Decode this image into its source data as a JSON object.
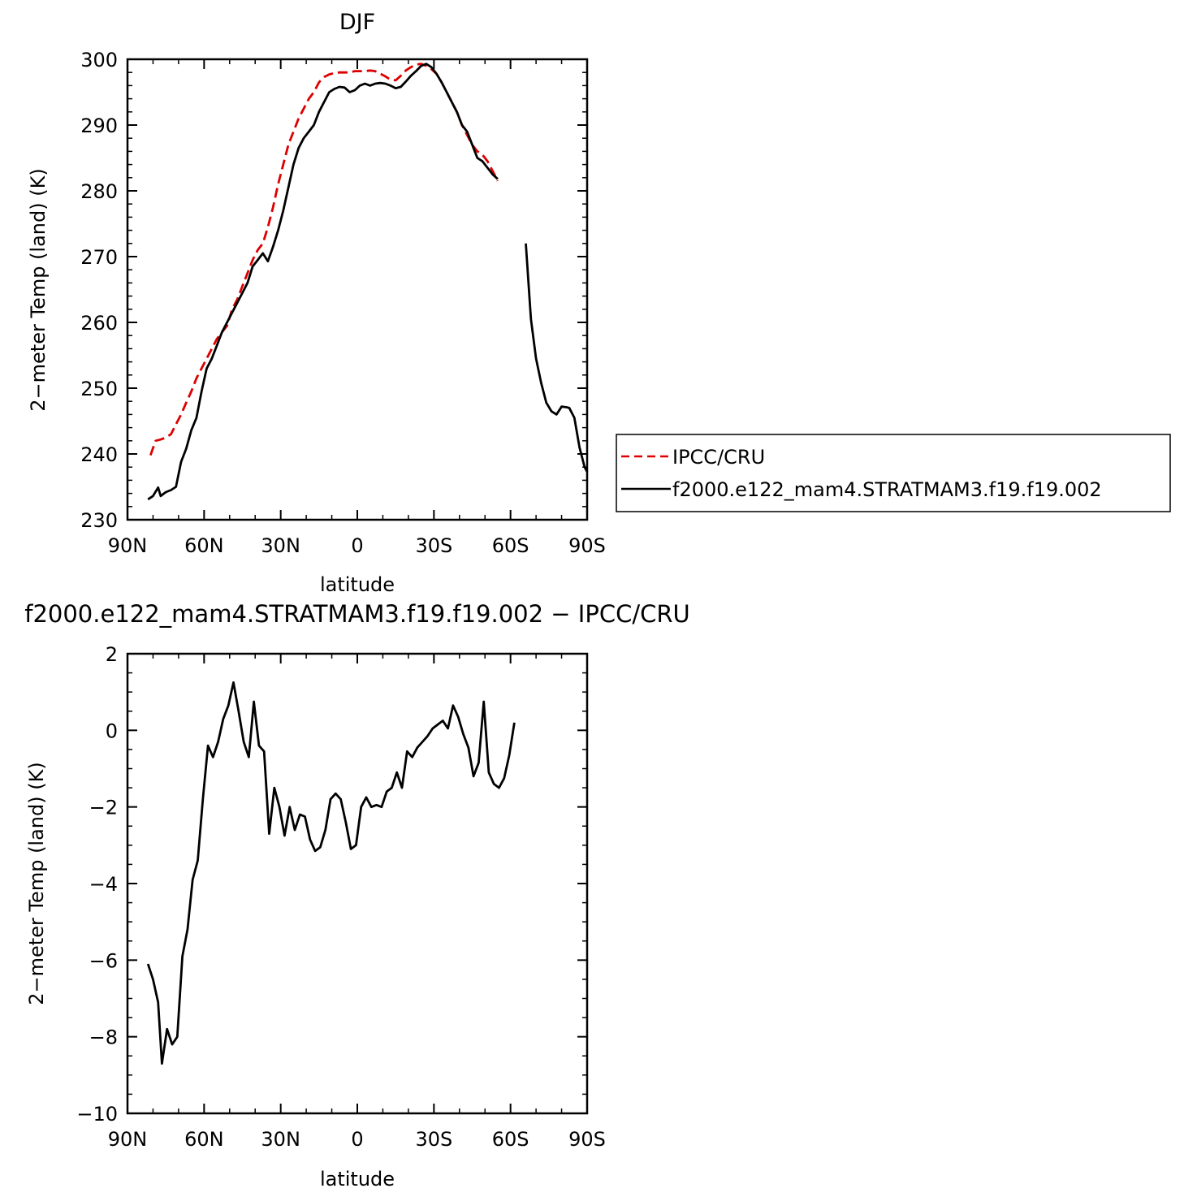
{
  "chart_data": [
    {
      "type": "line",
      "title": "DJF",
      "xlabel": "latitude",
      "ylabel": "2−meter Temp (land) (K)",
      "xlim": [
        90,
        -90
      ],
      "ylim": [
        230,
        300
      ],
      "x_ticks": [
        90,
        60,
        30,
        0,
        -30,
        -60,
        -90
      ],
      "x_tick_labels": [
        "90N",
        "60N",
        "30N",
        "0",
        "30S",
        "60S",
        "90S"
      ],
      "y_ticks": [
        230,
        240,
        250,
        260,
        270,
        280,
        290,
        300
      ],
      "y_tick_labels": [
        "230",
        "240",
        "250",
        "260",
        "270",
        "280",
        "290",
        "300"
      ],
      "legend_placement": "right",
      "series": [
        {
          "name": "IPCC/CRU",
          "color": "#dd0000",
          "dash": true,
          "points": [
            [
              81,
              239.8
            ],
            [
              79,
              242
            ],
            [
              77,
              242.2
            ],
            [
              75,
              242.5
            ],
            [
              73,
              243
            ],
            [
              71,
              244.5
            ],
            [
              69,
              246
            ],
            [
              67,
              247.8
            ],
            [
              65,
              249.5
            ],
            [
              63,
              251.5
            ],
            [
              61,
              253
            ],
            [
              59,
              254.5
            ],
            [
              57,
              256
            ],
            [
              55,
              257.5
            ],
            [
              53,
              258.5
            ],
            [
              51,
              259.5
            ],
            [
              49,
              262
            ],
            [
              47,
              263.5
            ],
            [
              45,
              265.5
            ],
            [
              43,
              267.5
            ],
            [
              41,
              269.5
            ],
            [
              39,
              271
            ],
            [
              37,
              272
            ],
            [
              35,
              274.5
            ],
            [
              33,
              277.5
            ],
            [
              31,
              281
            ],
            [
              29,
              284
            ],
            [
              27,
              287
            ],
            [
              25,
              289
            ],
            [
              23,
              291
            ],
            [
              21,
              292.5
            ],
            [
              19,
              294
            ],
            [
              17,
              295
            ],
            [
              15,
              296.5
            ],
            [
              13,
              297.3
            ],
            [
              11,
              297.7
            ],
            [
              9,
              297.9
            ],
            [
              7,
              298
            ],
            [
              5,
              298
            ],
            [
              3,
              298
            ],
            [
              1,
              298.2
            ],
            [
              -1,
              298.2
            ],
            [
              -3,
              298.2
            ],
            [
              -5,
              298.3
            ],
            [
              -7,
              298.2
            ],
            [
              -9,
              297.8
            ],
            [
              -11,
              297.4
            ],
            [
              -13,
              296.9
            ],
            [
              -15,
              296.8
            ],
            [
              -17,
              297.5
            ],
            [
              -19,
              298.3
            ],
            [
              -21,
              298.8
            ],
            [
              -23,
              299.2
            ],
            [
              -25,
              299.3
            ],
            [
              -27,
              299
            ],
            [
              -29,
              298.5
            ],
            [
              -31,
              297.8
            ],
            [
              -33,
              296.5
            ],
            [
              -35,
              295
            ],
            [
              -37,
              293.5
            ],
            [
              -39,
              292
            ],
            [
              -41,
              290
            ],
            [
              -43,
              288.5
            ],
            [
              -45,
              287
            ],
            [
              -47,
              286
            ],
            [
              -49,
              285.5
            ],
            [
              -51,
              284.5
            ],
            [
              -53,
              283
            ],
            [
              -55,
              281.5
            ]
          ]
        },
        {
          "name": "f2000.e122_mam4.STRATMAM3.f19.f19.002",
          "color": "#000000",
          "dash": false,
          "points": [
            [
              82,
              233.1
            ],
            [
              80,
              233.6
            ],
            [
              78,
              234.9
            ],
            [
              77,
              233.6
            ],
            [
              75,
              234.2
            ],
            [
              73,
              234.5
            ],
            [
              71,
              235
            ],
            [
              69,
              238.8
            ],
            [
              67,
              240.8
            ],
            [
              65,
              243.6
            ],
            [
              63,
              245.5
            ],
            [
              61,
              249.5
            ],
            [
              59,
              253
            ],
            [
              57,
              254.5
            ],
            [
              55,
              256.5
            ],
            [
              53,
              258.5
            ],
            [
              51,
              260
            ],
            [
              49,
              261.5
            ],
            [
              47,
              263
            ],
            [
              45,
              264.5
            ],
            [
              43,
              266
            ],
            [
              41,
              268.5
            ],
            [
              39,
              269.5
            ],
            [
              37,
              270.5
            ],
            [
              35,
              269.3
            ],
            [
              33,
              271.5
            ],
            [
              31,
              274
            ],
            [
              29,
              277
            ],
            [
              27,
              280.5
            ],
            [
              25,
              284
            ],
            [
              23,
              286.5
            ],
            [
              21,
              288
            ],
            [
              19,
              289
            ],
            [
              17,
              290
            ],
            [
              15,
              292
            ],
            [
              13,
              293.5
            ],
            [
              11,
              295
            ],
            [
              9,
              295.5
            ],
            [
              7,
              295.8
            ],
            [
              5,
              295.7
            ],
            [
              3,
              295
            ],
            [
              1,
              295.3
            ],
            [
              -1,
              296
            ],
            [
              -3,
              296.3
            ],
            [
              -5,
              296
            ],
            [
              -7,
              296.3
            ],
            [
              -9,
              296.4
            ],
            [
              -11,
              296.3
            ],
            [
              -13,
              296
            ],
            [
              -15,
              295.6
            ],
            [
              -17,
              295.8
            ],
            [
              -19,
              296.6
            ],
            [
              -21,
              297.5
            ],
            [
              -23,
              298.2
            ],
            [
              -25,
              299
            ],
            [
              -27,
              299.3
            ],
            [
              -29,
              298.8
            ],
            [
              -31,
              297.8
            ],
            [
              -33,
              296.5
            ],
            [
              -35,
              295
            ],
            [
              -37,
              293.5
            ],
            [
              -39,
              292
            ],
            [
              -41,
              290
            ],
            [
              -43,
              289
            ],
            [
              -45,
              287
            ],
            [
              -47,
              285
            ],
            [
              -49,
              284.5
            ],
            [
              -51,
              283.5
            ],
            [
              -53,
              282.5
            ],
            [
              -55,
              281.8
            ],
            null,
            [
              -66,
              272
            ],
            [
              -68,
              260.5
            ],
            [
              -70,
              254.5
            ],
            [
              -72,
              250.8
            ],
            [
              -74,
              247.8
            ],
            [
              -76,
              246.5
            ],
            [
              -78,
              246
            ],
            [
              -80,
              247.2
            ],
            [
              -82,
              247.1
            ],
            [
              -83,
              247
            ],
            [
              -85,
              245.5
            ],
            [
              -87,
              241
            ],
            [
              -89,
              238
            ],
            [
              -90,
              237.3
            ]
          ]
        }
      ]
    },
    {
      "type": "line",
      "title": "f2000.e122_mam4.STRATMAM3.f19.f19.002 − IPCC/CRU",
      "xlabel": "latitude",
      "ylabel": "2−meter Temp (land) (K)",
      "xlim": [
        90,
        -90
      ],
      "ylim": [
        -10,
        2
      ],
      "x_ticks": [
        90,
        60,
        30,
        0,
        -30,
        -60,
        -90
      ],
      "x_tick_labels": [
        "90N",
        "60N",
        "30N",
        "0",
        "30S",
        "60S",
        "90S"
      ],
      "y_ticks": [
        -10,
        -8,
        -6,
        -4,
        -2,
        0,
        2
      ],
      "y_tick_labels": [
        "−10",
        "−8",
        "−6",
        "−4",
        "−2",
        "0",
        "2"
      ],
      "series": [
        {
          "color": "#000000",
          "dash": false,
          "points": [
            [
              82,
              -6.1
            ],
            [
              80,
              -6.5
            ],
            [
              78,
              -7.1
            ],
            [
              76.5,
              -8.7
            ],
            [
              74.5,
              -7.8
            ],
            [
              72.5,
              -8.2
            ],
            [
              70.5,
              -8
            ],
            [
              68.5,
              -5.9
            ],
            [
              66.5,
              -5.2
            ],
            [
              64.5,
              -3.9
            ],
            [
              62.5,
              -3.4
            ],
            [
              60.5,
              -1.8
            ],
            [
              58.5,
              -0.4
            ],
            [
              56.5,
              -0.7
            ],
            [
              54.5,
              -0.3
            ],
            [
              52.5,
              0.3
            ],
            [
              50.5,
              0.65
            ],
            [
              48.5,
              1.25
            ],
            [
              46.5,
              0.5
            ],
            [
              44.5,
              -0.3
            ],
            [
              42.5,
              -0.7
            ],
            [
              40.5,
              0.75
            ],
            [
              38.5,
              -0.4
            ],
            [
              36.5,
              -0.55
            ],
            [
              34.5,
              -2.7
            ],
            [
              32.5,
              -1.5
            ],
            [
              30.5,
              -2
            ],
            [
              28.5,
              -2.75
            ],
            [
              26.5,
              -2
            ],
            [
              24.5,
              -2.6
            ],
            [
              22.5,
              -2.2
            ],
            [
              20.5,
              -2.25
            ],
            [
              18.5,
              -2.85
            ],
            [
              16.5,
              -3.15
            ],
            [
              14.5,
              -3.05
            ],
            [
              12.5,
              -2.6
            ],
            [
              10.5,
              -1.8
            ],
            [
              8.5,
              -1.65
            ],
            [
              6.5,
              -1.8
            ],
            [
              4.5,
              -2.4
            ],
            [
              2.5,
              -3.1
            ],
            [
              0.5,
              -3
            ],
            [
              -1.5,
              -2
            ],
            [
              -3.5,
              -1.75
            ],
            [
              -5.5,
              -2
            ],
            [
              -7.5,
              -1.95
            ],
            [
              -9.5,
              -2
            ],
            [
              -11.5,
              -1.6
            ],
            [
              -13.5,
              -1.5
            ],
            [
              -15.5,
              -1.1
            ],
            [
              -17.5,
              -1.5
            ],
            [
              -19.5,
              -0.55
            ],
            [
              -21.5,
              -0.7
            ],
            [
              -23.5,
              -0.45
            ],
            [
              -25.5,
              -0.3
            ],
            [
              -27.5,
              -0.15
            ],
            [
              -29.5,
              0.05
            ],
            [
              -31.5,
              0.15
            ],
            [
              -33.5,
              0.25
            ],
            [
              -35.5,
              0.05
            ],
            [
              -37.5,
              0.65
            ],
            [
              -39.5,
              0.35
            ],
            [
              -41.5,
              -0.1
            ],
            [
              -43.5,
              -0.45
            ],
            [
              -45.5,
              -1.2
            ],
            [
              -47.5,
              -0.85
            ],
            [
              -49.5,
              0.75
            ],
            [
              -51.5,
              -1.1
            ],
            [
              -53.5,
              -1.4
            ],
            [
              -55.5,
              -1.5
            ],
            [
              -57.5,
              -1.25
            ],
            [
              -59.5,
              -0.65
            ],
            [
              -61.5,
              0.2
            ]
          ]
        }
      ]
    }
  ]
}
